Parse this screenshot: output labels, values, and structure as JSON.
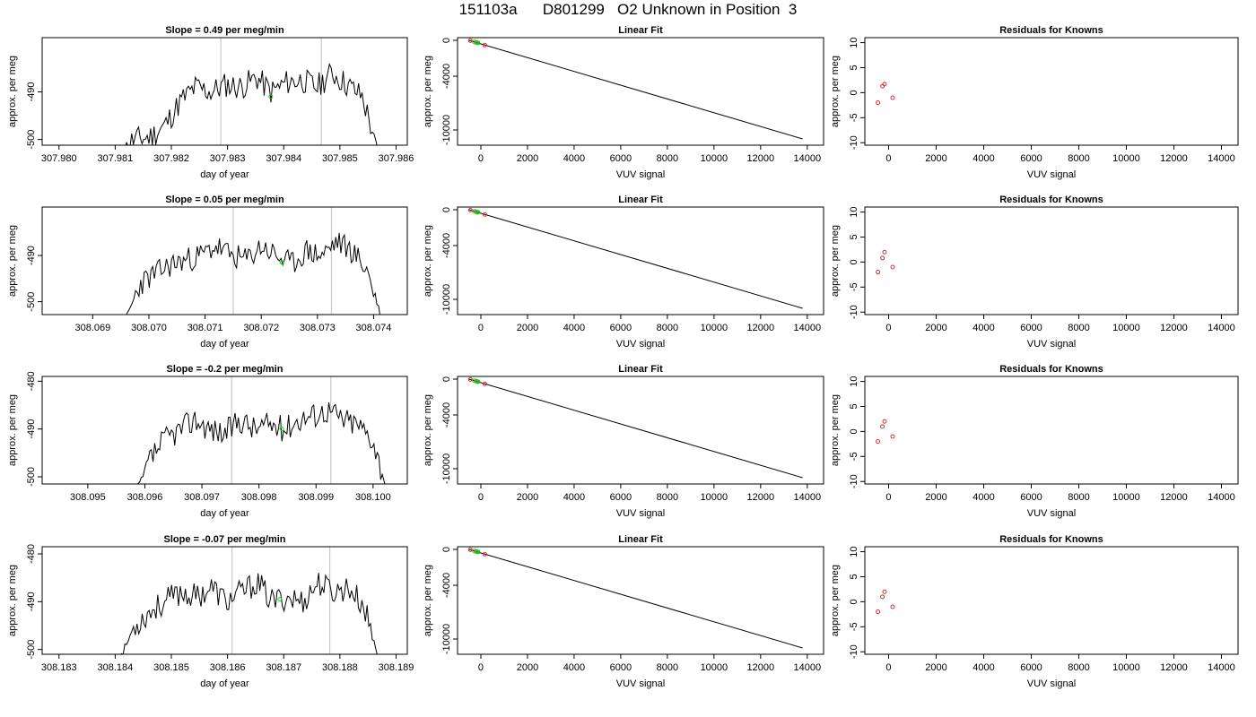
{
  "figure_title": "151103a      D801299   O2 Unknown in Position  3",
  "colors": {
    "trace": "#000000",
    "marker_known": "#cc3333",
    "marker_unknown": "#22cc22",
    "vertical_lines": "#c8c8c8",
    "fit_line": "#000000"
  },
  "chart_data": [
    {
      "type": "line",
      "title": "Slope =  0.49  per meg/min",
      "xlabel": "day of year",
      "ylabel": "approx. per meg",
      "x_ticks": [
        "307.980",
        "307.981",
        "307.982",
        "307.983",
        "307.984",
        "307.985",
        "307.986"
      ],
      "x_tick_values": [
        307.98,
        307.981,
        307.982,
        307.983,
        307.984,
        307.985,
        307.986
      ],
      "y_ticks": [
        "-490",
        "-500"
      ],
      "y_tick_values": [
        -490,
        -500
      ],
      "xlim": [
        307.9797,
        307.9862
      ],
      "ylim": [
        -501.2,
        -478.6
      ],
      "trace": {
        "x_start": 307.98108,
        "x_end": 307.98567,
        "levels": [
          -502,
          -500,
          -499.5,
          -497,
          -492,
          -489,
          -490,
          -488.5,
          -489,
          -487,
          -490,
          -488,
          -487.5,
          -489,
          -486,
          -488.5,
          -491,
          -502
        ],
        "seed": 11
      },
      "vlines": [
        307.98288,
        307.98467
      ],
      "unknown_point": {
        "x": 307.98377,
        "y": -491
      },
      "grid": false
    },
    {
      "type": "line",
      "title": "Linear Fit",
      "xlabel": "VUV signal",
      "ylabel": "approx. per meg",
      "x_ticks": [
        "0",
        "2000",
        "4000",
        "6000",
        "8000",
        "10000",
        "12000",
        "14000"
      ],
      "x_tick_values": [
        0,
        2000,
        4000,
        6000,
        8000,
        10000,
        12000,
        14000
      ],
      "y_ticks": [
        "0",
        "-4000",
        "-10000"
      ],
      "y_tick_values": [
        0,
        -4000,
        -10000
      ],
      "xlim": [
        -1000,
        14700
      ],
      "ylim": [
        -11700,
        300
      ],
      "fit_line": {
        "x": [
          -500,
          13800
        ],
        "y": [
          -10,
          -11000
        ]
      },
      "known_points": [
        {
          "x": -450,
          "y": -40
        },
        {
          "x": -200,
          "y": -230
        },
        {
          "x": -150,
          "y": -280
        },
        {
          "x": 170,
          "y": -530
        }
      ],
      "unknown_points": [
        {
          "x": -280,
          "y": -170
        },
        {
          "x": -190,
          "y": -240
        },
        {
          "x": -120,
          "y": -290
        }
      ],
      "grid": false
    },
    {
      "type": "scatter",
      "title": "Residuals for Knowns",
      "xlabel": "VUV signal",
      "ylabel": "approx. per meg",
      "x_ticks": [
        "0",
        "2000",
        "4000",
        "6000",
        "8000",
        "10000",
        "12000",
        "14000"
      ],
      "x_tick_values": [
        0,
        2000,
        4000,
        6000,
        8000,
        10000,
        12000,
        14000
      ],
      "y_ticks": [
        "10",
        "5",
        "0",
        "-5",
        "-10"
      ],
      "y_tick_values": [
        10,
        5,
        0,
        -5,
        -10
      ],
      "xlim": [
        -1000,
        14700
      ],
      "ylim": [
        -10.5,
        11
      ],
      "known_points": [
        {
          "x": -450,
          "y": -2
        },
        {
          "x": -260,
          "y": 1.3
        },
        {
          "x": -170,
          "y": 1.7
        },
        {
          "x": 170,
          "y": -1
        }
      ],
      "grid": false
    },
    {
      "type": "line",
      "title": "Slope =  0.05  per meg/min",
      "xlabel": "day of year",
      "ylabel": "approx. per meg",
      "x_ticks": [
        "308.069",
        "308.070",
        "308.071",
        "308.072",
        "308.073",
        "308.074"
      ],
      "x_tick_values": [
        308.069,
        308.07,
        308.071,
        308.072,
        308.073,
        308.074
      ],
      "y_ticks": [
        "-490",
        "-500"
      ],
      "y_tick_values": [
        -490,
        -500
      ],
      "xlim": [
        308.0681,
        308.0746
      ],
      "ylim": [
        -502.8,
        -479.5
      ],
      "trace": {
        "x_start": 308.06958,
        "x_end": 308.07415,
        "levels": [
          -504,
          -496,
          -494,
          -492,
          -491,
          -490,
          -488,
          -490,
          -491,
          -488,
          -490,
          -492,
          -489,
          -490,
          -487,
          -489,
          -493,
          -504
        ],
        "seed": 23
      },
      "vlines": [
        308.0715,
        308.07325
      ],
      "unknown_point": {
        "x": 308.07237,
        "y": -491.5
      },
      "grid": false
    },
    {
      "type": "line",
      "title": "Linear Fit",
      "xlabel": "VUV signal",
      "ylabel": "approx. per meg",
      "x_ticks": [
        "0",
        "2000",
        "4000",
        "6000",
        "8000",
        "10000",
        "12000",
        "14000"
      ],
      "x_tick_values": [
        0,
        2000,
        4000,
        6000,
        8000,
        10000,
        12000,
        14000
      ],
      "y_ticks": [
        "0",
        "-4000",
        "-10000"
      ],
      "y_tick_values": [
        0,
        -4000,
        -10000
      ],
      "xlim": [
        -1000,
        14700
      ],
      "ylim": [
        -11700,
        300
      ],
      "fit_line": {
        "x": [
          -500,
          13800
        ],
        "y": [
          -10,
          -11000
        ]
      },
      "known_points": [
        {
          "x": -450,
          "y": -40
        },
        {
          "x": -200,
          "y": -230
        },
        {
          "x": -150,
          "y": -280
        },
        {
          "x": 170,
          "y": -530
        }
      ],
      "unknown_points": [
        {
          "x": -280,
          "y": -170
        },
        {
          "x": -190,
          "y": -240
        },
        {
          "x": -120,
          "y": -290
        }
      ],
      "grid": false
    },
    {
      "type": "scatter",
      "title": "Residuals for Knowns",
      "xlabel": "VUV signal",
      "ylabel": "approx. per meg",
      "x_ticks": [
        "0",
        "2000",
        "4000",
        "6000",
        "8000",
        "10000",
        "12000",
        "14000"
      ],
      "x_tick_values": [
        0,
        2000,
        4000,
        6000,
        8000,
        10000,
        12000,
        14000
      ],
      "y_ticks": [
        "10",
        "5",
        "0",
        "-5",
        "-10"
      ],
      "y_tick_values": [
        10,
        5,
        0,
        -5,
        -10
      ],
      "xlim": [
        -1000,
        14700
      ],
      "ylim": [
        -10.5,
        11
      ],
      "known_points": [
        {
          "x": -450,
          "y": -2
        },
        {
          "x": -260,
          "y": 0.8
        },
        {
          "x": -170,
          "y": 2
        },
        {
          "x": 170,
          "y": -1
        }
      ],
      "grid": false
    },
    {
      "type": "line",
      "title": "Slope =  -0.2  per meg/min",
      "xlabel": "day of year",
      "ylabel": "approx. per meg",
      "x_ticks": [
        "308.095",
        "308.096",
        "308.097",
        "308.098",
        "308.099",
        "308.100"
      ],
      "x_tick_values": [
        308.095,
        308.096,
        308.097,
        308.098,
        308.099,
        308.1
      ],
      "y_ticks": [
        "-480",
        "-490",
        "-500"
      ],
      "y_tick_values": [
        -480,
        -490,
        -500
      ],
      "xlim": [
        308.0942,
        308.1006
      ],
      "ylim": [
        -501.5,
        -479
      ],
      "trace": {
        "x_start": 308.09585,
        "x_end": 308.10025,
        "levels": [
          -503,
          -496,
          -492,
          -490,
          -488,
          -490,
          -491,
          -488,
          -490,
          -489,
          -490,
          -488,
          -487,
          -486,
          -488,
          -489,
          -492,
          -503
        ],
        "seed": 37
      },
      "vlines": [
        308.09752,
        308.09926
      ],
      "unknown_point": {
        "x": 308.0984,
        "y": -490
      },
      "grid": false
    },
    {
      "type": "line",
      "title": "Linear Fit",
      "xlabel": "VUV signal",
      "ylabel": "approx. per meg",
      "x_ticks": [
        "0",
        "2000",
        "4000",
        "6000",
        "8000",
        "10000",
        "12000",
        "14000"
      ],
      "x_tick_values": [
        0,
        2000,
        4000,
        6000,
        8000,
        10000,
        12000,
        14000
      ],
      "y_ticks": [
        "0",
        "-4000",
        "-10000"
      ],
      "y_tick_values": [
        0,
        -4000,
        -10000
      ],
      "xlim": [
        -1000,
        14700
      ],
      "ylim": [
        -11700,
        300
      ],
      "fit_line": {
        "x": [
          -500,
          13800
        ],
        "y": [
          -10,
          -11000
        ]
      },
      "known_points": [
        {
          "x": -450,
          "y": -40
        },
        {
          "x": -200,
          "y": -230
        },
        {
          "x": -150,
          "y": -280
        },
        {
          "x": 170,
          "y": -530
        }
      ],
      "unknown_points": [
        {
          "x": -280,
          "y": -170
        },
        {
          "x": -190,
          "y": -240
        },
        {
          "x": -120,
          "y": -290
        }
      ],
      "grid": false
    },
    {
      "type": "scatter",
      "title": "Residuals for Knowns",
      "xlabel": "VUV signal",
      "ylabel": "approx. per meg",
      "x_ticks": [
        "0",
        "2000",
        "4000",
        "6000",
        "8000",
        "10000",
        "12000",
        "14000"
      ],
      "x_tick_values": [
        0,
        2000,
        4000,
        6000,
        8000,
        10000,
        12000,
        14000
      ],
      "y_ticks": [
        "10",
        "5",
        "0",
        "-5",
        "-10"
      ],
      "y_tick_values": [
        10,
        5,
        0,
        -5,
        -10
      ],
      "xlim": [
        -1000,
        14700
      ],
      "ylim": [
        -10.5,
        11
      ],
      "known_points": [
        {
          "x": -450,
          "y": -2
        },
        {
          "x": -260,
          "y": 1
        },
        {
          "x": -170,
          "y": 2
        },
        {
          "x": 170,
          "y": -1
        }
      ],
      "grid": false
    },
    {
      "type": "line",
      "title": "Slope =  -0.07  per meg/min",
      "xlabel": "day of year",
      "ylabel": "approx. per meg",
      "x_ticks": [
        "308.183",
        "308.184",
        "308.185",
        "308.186",
        "308.187",
        "308.188",
        "308.189"
      ],
      "x_tick_values": [
        308.183,
        308.184,
        308.185,
        308.186,
        308.187,
        308.188,
        308.189
      ],
      "y_ticks": [
        "-480",
        "-490",
        "-500"
      ],
      "y_tick_values": [
        -480,
        -490,
        -500
      ],
      "xlim": [
        308.1827,
        308.1892
      ],
      "ylim": [
        -501,
        -478.5
      ],
      "trace": {
        "x_start": 308.18408,
        "x_end": 308.1887,
        "levels": [
          -502,
          -495,
          -492,
          -490,
          -488,
          -489,
          -487,
          -490,
          -488,
          -486,
          -490,
          -489,
          -490,
          -486,
          -488,
          -487,
          -491,
          -502
        ],
        "seed": 53
      },
      "vlines": [
        308.18608,
        308.18782
      ],
      "unknown_point": {
        "x": 308.18693,
        "y": -489.5
      },
      "grid": false
    },
    {
      "type": "line",
      "title": "Linear Fit",
      "xlabel": "VUV signal",
      "ylabel": "approx. per meg",
      "x_ticks": [
        "0",
        "2000",
        "4000",
        "6000",
        "8000",
        "10000",
        "12000",
        "14000"
      ],
      "x_tick_values": [
        0,
        2000,
        4000,
        6000,
        8000,
        10000,
        12000,
        14000
      ],
      "y_ticks": [
        "0",
        "-4000",
        "-10000"
      ],
      "y_tick_values": [
        0,
        -4000,
        -10000
      ],
      "xlim": [
        -1000,
        14700
      ],
      "ylim": [
        -11700,
        300
      ],
      "fit_line": {
        "x": [
          -500,
          13800
        ],
        "y": [
          -10,
          -11000
        ]
      },
      "known_points": [
        {
          "x": -450,
          "y": -40
        },
        {
          "x": -200,
          "y": -230
        },
        {
          "x": -150,
          "y": -280
        },
        {
          "x": 170,
          "y": -530
        }
      ],
      "unknown_points": [
        {
          "x": -280,
          "y": -170
        },
        {
          "x": -190,
          "y": -240
        },
        {
          "x": -120,
          "y": -290
        }
      ],
      "grid": false
    },
    {
      "type": "scatter",
      "title": "Residuals for Knowns",
      "xlabel": "VUV signal",
      "ylabel": "approx. per meg",
      "x_ticks": [
        "0",
        "2000",
        "4000",
        "6000",
        "8000",
        "10000",
        "12000",
        "14000"
      ],
      "x_tick_values": [
        0,
        2000,
        4000,
        6000,
        8000,
        10000,
        12000,
        14000
      ],
      "y_ticks": [
        "10",
        "5",
        "0",
        "-5",
        "-10"
      ],
      "y_tick_values": [
        10,
        5,
        0,
        -5,
        -10
      ],
      "xlim": [
        -1000,
        14700
      ],
      "ylim": [
        -10.5,
        11
      ],
      "known_points": [
        {
          "x": -450,
          "y": -2
        },
        {
          "x": -260,
          "y": 1
        },
        {
          "x": -170,
          "y": 2
        },
        {
          "x": 170,
          "y": -1
        }
      ],
      "grid": false
    }
  ]
}
